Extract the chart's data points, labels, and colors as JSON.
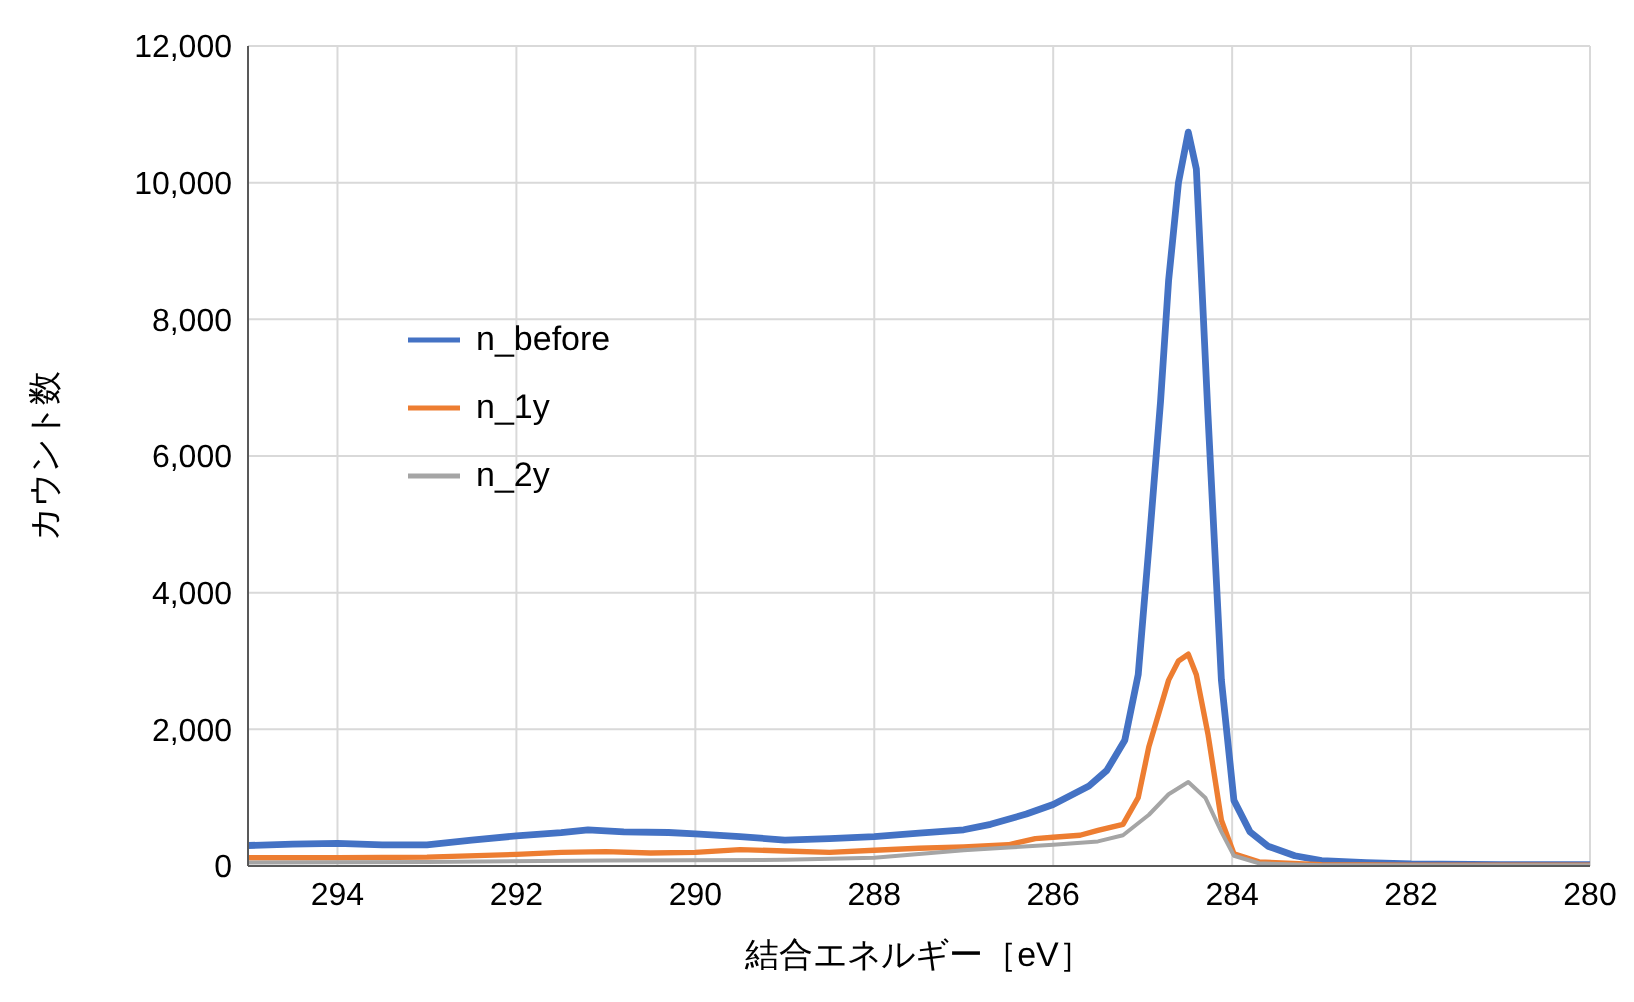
{
  "chart_data": {
    "type": "line",
    "xlabel": "結合エネルギー［eV］",
    "ylabel": "カウント数",
    "xlim": [
      295,
      280
    ],
    "xticks": [
      294,
      292,
      290,
      288,
      286,
      284,
      282,
      280
    ],
    "ylim": [
      0,
      12000
    ],
    "yticks": [
      {
        "value": 0,
        "label": "0"
      },
      {
        "value": 2000,
        "label": "2,000"
      },
      {
        "value": 4000,
        "label": "4,000"
      },
      {
        "value": 6000,
        "label": "6,000"
      },
      {
        "value": 8000,
        "label": "8,000"
      },
      {
        "value": 10000,
        "label": "10,000"
      },
      {
        "value": 12000,
        "label": "12,000"
      }
    ],
    "grid": true,
    "legend": "left",
    "marker": "none",
    "line_style": "solid",
    "series": [
      {
        "name": "n_before",
        "color": "#4472c4",
        "x": [
          295,
          294.5,
          294,
          293.5,
          293,
          292.5,
          292,
          291.5,
          291.2,
          290.8,
          290.3,
          290,
          289.5,
          289,
          288.5,
          288,
          287.5,
          287,
          286.7,
          286.3,
          286,
          285.6,
          285.4,
          285.2,
          285.05,
          284.93,
          284.8,
          284.71,
          284.6,
          284.49,
          284.4,
          284.27,
          284.12,
          283.98,
          283.8,
          283.6,
          283.3,
          283,
          282.5,
          282,
          281,
          280
        ],
        "values": [
          300,
          320,
          330,
          310,
          310,
          380,
          440,
          490,
          530,
          500,
          490,
          470,
          430,
          380,
          400,
          430,
          480,
          530,
          610,
          760,
          900,
          1170,
          1400,
          1840,
          2800,
          4680,
          6800,
          8570,
          10000,
          10740,
          10200,
          6600,
          2720,
          960,
          500,
          290,
          150,
          80,
          50,
          30,
          20,
          20
        ]
      },
      {
        "name": "n_1y",
        "color": "#ed7d31",
        "x": [
          295,
          294,
          293,
          292,
          291.5,
          291,
          290.5,
          290,
          289.5,
          289,
          288.5,
          288,
          287.5,
          287,
          286.5,
          286.2,
          286,
          285.7,
          285.5,
          285.22,
          285.05,
          284.93,
          284.71,
          284.6,
          284.49,
          284.4,
          284.27,
          284.12,
          283.98,
          283.7,
          283,
          282,
          280
        ],
        "values": [
          120,
          120,
          130,
          170,
          200,
          210,
          190,
          200,
          240,
          220,
          200,
          230,
          260,
          280,
          310,
          400,
          420,
          450,
          520,
          610,
          1000,
          1750,
          2720,
          3000,
          3100,
          2800,
          1930,
          670,
          180,
          60,
          20,
          10,
          10
        ]
      },
      {
        "name": "n_2y",
        "color": "#a5a5a5",
        "x": [
          295,
          293,
          291,
          289,
          288,
          287,
          286.5,
          286,
          285.5,
          285.22,
          284.93,
          284.71,
          284.49,
          284.3,
          284.12,
          283.98,
          283.7,
          283,
          280
        ],
        "values": [
          50,
          60,
          80,
          90,
          120,
          230,
          270,
          310,
          360,
          450,
          750,
          1050,
          1230,
          1000,
          500,
          150,
          40,
          10,
          10
        ]
      }
    ]
  }
}
